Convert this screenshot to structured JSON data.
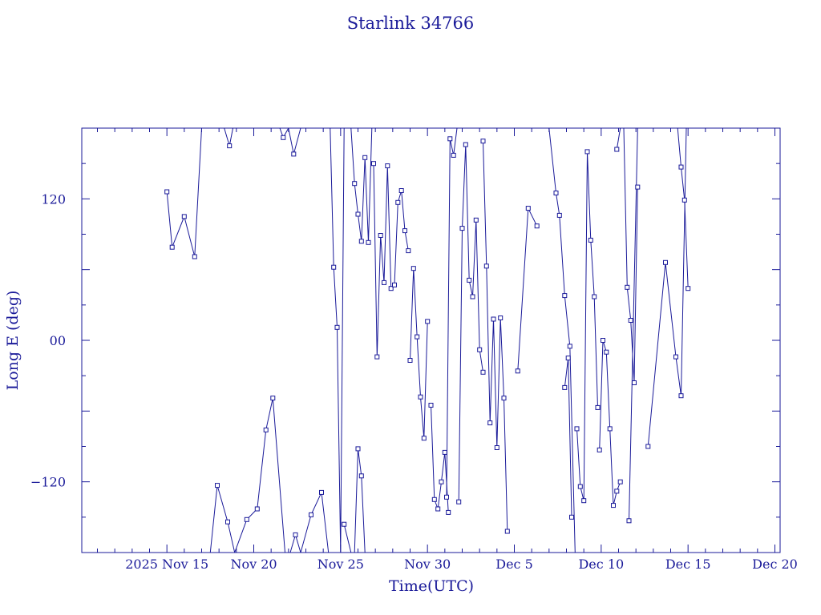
{
  "chart_data": {
    "type": "line",
    "title": "Starlink 34766",
    "xlabel": "Time(UTC)",
    "ylabel": "Long E (deg)",
    "x_unit": "days (Nov 2025; Dec 1 = 31)",
    "xlim": [
      10.1,
      50.3
    ],
    "ylim": [
      -180,
      180
    ],
    "x_ticks": [
      {
        "value": 15,
        "label": "2025 Nov 15"
      },
      {
        "value": 20,
        "label": "Nov 20"
      },
      {
        "value": 25,
        "label": "Nov 25"
      },
      {
        "value": 30,
        "label": "Nov 30"
      },
      {
        "value": 35,
        "label": "Dec  5"
      },
      {
        "value": 40,
        "label": "Dec 10"
      },
      {
        "value": 45,
        "label": "Dec 15"
      },
      {
        "value": 50,
        "label": "Dec 20"
      }
    ],
    "y_ticks": [
      {
        "value": 120,
        "label": "120"
      },
      {
        "value": 0,
        "label": "00"
      },
      {
        "value": -120,
        "label": "−120"
      }
    ],
    "color": "#1a1a99",
    "grid": false,
    "series": [
      {
        "x": [
          15.0,
          15.3,
          16.0,
          16.6,
          17.0,
          17.4
        ],
        "y": [
          126,
          79,
          105,
          71,
          180,
          180
        ]
      },
      {
        "x": [
          18.3,
          18.6,
          18.8,
          19.3,
          19.5
        ],
        "y": [
          180,
          165,
          180,
          180,
          180
        ]
      },
      {
        "x": [
          21.5,
          21.7,
          22.0,
          22.3,
          22.7,
          23.0
        ],
        "y": [
          180,
          172,
          180,
          158,
          180,
          180
        ]
      },
      {
        "x": [
          24.4,
          24.6,
          24.8,
          25.0,
          25.2,
          25.4
        ],
        "y": [
          180,
          62,
          11,
          -180,
          180,
          180
        ]
      },
      {
        "x": [
          25.6,
          25.8,
          26.0,
          26.2,
          26.4,
          26.6,
          26.8,
          27.0
        ],
        "y": [
          180,
          133,
          107,
          84,
          155,
          83,
          180,
          180
        ]
      },
      {
        "x": [
          26.9,
          27.1,
          27.3,
          27.5,
          27.7,
          27.9,
          28.1,
          28.3,
          28.5,
          28.7,
          28.9
        ],
        "y": [
          150,
          -14,
          89,
          49,
          148,
          44,
          47,
          117,
          127,
          93,
          76
        ]
      },
      {
        "x": [
          29.0,
          29.2,
          29.4,
          29.6,
          29.8,
          30.0
        ],
        "y": [
          -17,
          61,
          3,
          -48,
          -83,
          16
        ]
      },
      {
        "x": [
          30.2,
          30.4,
          30.6,
          30.8,
          31.0,
          31.2
        ],
        "y": [
          -55,
          -135,
          -143,
          -120,
          -95,
          -146
        ]
      },
      {
        "x": [
          31.1,
          31.3,
          31.5,
          31.7,
          31.9,
          32.1
        ],
        "y": [
          -133,
          171,
          157,
          180,
          180,
          180
        ]
      },
      {
        "x": [
          31.8,
          32.0,
          32.2,
          32.4,
          32.6,
          32.8,
          33.0,
          33.2
        ],
        "y": [
          -137,
          95,
          166,
          51,
          37,
          102,
          -8,
          -27
        ]
      },
      {
        "x": [
          33.2,
          33.4,
          33.6,
          33.8,
          34.0,
          34.2,
          34.4,
          34.6
        ],
        "y": [
          169,
          63,
          -70,
          18,
          -91,
          19,
          -49,
          -162
        ]
      },
      {
        "x": [
          35.2,
          35.8,
          36.3
        ],
        "y": [
          -26,
          112,
          97
        ]
      },
      {
        "x": [
          37.0,
          37.4,
          37.6,
          37.9,
          38.2,
          38.5
        ],
        "y": [
          180,
          125,
          106,
          38,
          -5,
          -180
        ]
      },
      {
        "x": [
          37.9,
          38.1,
          38.3
        ],
        "y": [
          -40,
          -15,
          -150
        ]
      },
      {
        "x": [
          38.6,
          38.8,
          39.0,
          39.2,
          39.4,
          39.6,
          39.8
        ],
        "y": [
          -75,
          -124,
          -136,
          160,
          85,
          37,
          -57
        ]
      },
      {
        "x": [
          39.9,
          40.1,
          40.3,
          40.5,
          40.7,
          40.9,
          41.1
        ],
        "y": [
          -93,
          0,
          -10,
          -75,
          -140,
          -128,
          -120
        ]
      },
      {
        "x": [
          40.9,
          41.1,
          41.3,
          41.5,
          41.7,
          41.9,
          42.1
        ],
        "y": [
          162,
          180,
          180,
          45,
          17,
          -36,
          130
        ]
      },
      {
        "x": [
          41.6,
          42.1
        ],
        "y": [
          -153,
          180
        ]
      },
      {
        "x": [
          42.7,
          43.7,
          44.3,
          44.6,
          44.9
        ],
        "y": [
          -90,
          66,
          -14,
          -47,
          180
        ]
      },
      {
        "x": [
          44.4,
          44.6,
          44.8,
          45.0
        ],
        "y": [
          180,
          147,
          119,
          44
        ]
      },
      {
        "x": [
          17.5,
          17.9,
          18.5,
          18.9,
          19.6,
          20.2,
          20.7,
          21.1,
          21.8
        ],
        "y": [
          -180,
          -123,
          -154,
          -180,
          -152,
          -143,
          -76,
          -49,
          -180
        ]
      },
      {
        "x": [
          22.1,
          22.4,
          22.7,
          23.3,
          23.9,
          24.3,
          24.6
        ],
        "y": [
          -180,
          -165,
          -180,
          -148,
          -129,
          -180,
          -180
        ]
      },
      {
        "x": [
          25.2,
          25.6,
          25.8,
          26.0,
          26.2,
          26.4
        ],
        "y": [
          -156,
          -180,
          -180,
          -92,
          -115,
          -180
        ]
      }
    ]
  }
}
